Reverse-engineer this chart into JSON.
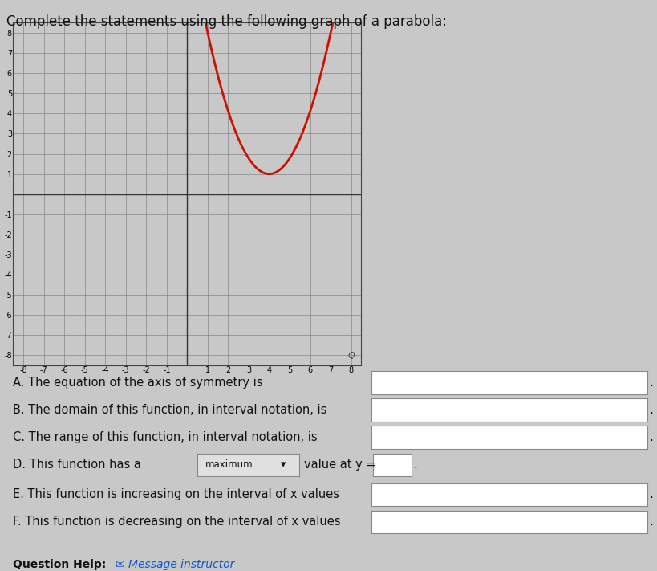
{
  "title": "Complete the statements using the following graph of a parabola:",
  "title_fontsize": 12,
  "background_color": "#c8c8c8",
  "graph_bg": "#c8c8c8",
  "parabola_color": "#cc1100",
  "parabola_lw": 2.0,
  "vertex_x": 4,
  "vertex_y": 1,
  "parabola_a": 0.778,
  "xlim": [
    -8.5,
    8.5
  ],
  "ylim": [
    -8.5,
    8.5
  ],
  "xticks": [
    -8,
    -7,
    -6,
    -5,
    -4,
    -3,
    -2,
    -1,
    1,
    2,
    3,
    4,
    5,
    6,
    7,
    8
  ],
  "yticks": [
    -8,
    -7,
    -6,
    -5,
    -4,
    -3,
    -2,
    -1,
    1,
    2,
    3,
    4,
    5,
    6,
    7,
    8
  ],
  "stmt_A": "A. The equation of the axis of symmetry is",
  "stmt_B": "B. The domain of this function, in interval notation, is",
  "stmt_C": "C. The range of this function, in interval notation, is",
  "stmt_D": "D. This function has a",
  "stmt_D_dropdown": "maximum",
  "stmt_D_mid": "value at y =",
  "stmt_E": "E. This function is increasing on the interval of x values",
  "stmt_F": "F. This function is decreasing on the interval of x values",
  "question_help": "Question Help:",
  "msg_instructor": "Message instructor",
  "box_color": "#ffffff",
  "box_edge": "#999999",
  "text_color": "#111111",
  "fontsize_stmt": 10.5,
  "zoom_icon": "Q"
}
